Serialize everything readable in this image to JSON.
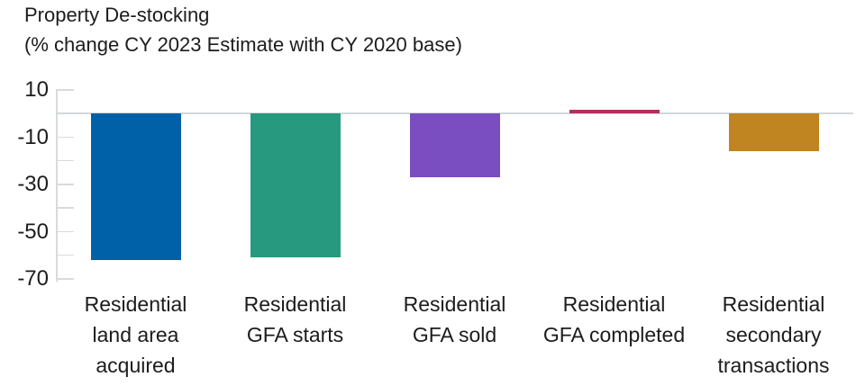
{
  "title": "Property De-stocking",
  "subtitle": "(% change CY 2023 Estimate with CY 2020 base)",
  "colors": {
    "background": "#ffffff",
    "text": "#1c1c1e",
    "axis": "#d7dbde",
    "zero_line": "#d2d7da"
  },
  "chart_data": {
    "type": "bar",
    "title": "Property De-stocking",
    "subtitle": "(% change CY 2023 Estimate with CY 2020 base)",
    "categories": [
      "Residential\nland area\nacquired",
      "Residential\nGFA starts",
      "Residential\nGFA sold",
      "Residential\nGFA completed",
      "Residential\nsecondary\ntransactions"
    ],
    "values": [
      -62,
      -61,
      -27,
      1.5,
      -16
    ],
    "bar_colors": [
      "#0061a8",
      "#26997e",
      "#7a4ec0",
      "#b42f5e",
      "#c08420"
    ],
    "xlabel": "",
    "ylabel": "",
    "ylim": [
      -70,
      10
    ],
    "ytick_labels": [
      10,
      -10,
      -30,
      -50,
      -70
    ],
    "ytick_minor": [
      0,
      -20,
      -40,
      -60
    ],
    "grid": "zero-line-only",
    "legend": "none"
  }
}
